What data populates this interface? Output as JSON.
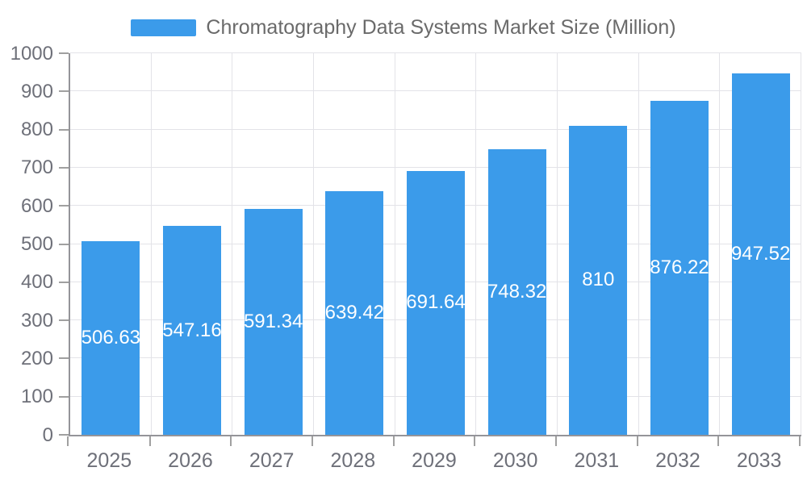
{
  "legend": {
    "label": "Chromatography Data Systems Market Size (Million)"
  },
  "colors": {
    "background": "#ffffff",
    "bar": "#3b9bea",
    "grid": "#e3e3e8",
    "axis": "#949499",
    "tick": "#a0a0a0",
    "tick_label": "#6e7079",
    "legend_text": "#6a6a6a",
    "value_label": "#ffffff"
  },
  "chart_data": {
    "type": "bar",
    "title": "Chromatography Data Systems Market Size (Million)",
    "categories": [
      "2025",
      "2026",
      "2027",
      "2028",
      "2029",
      "2030",
      "2031",
      "2032",
      "2033"
    ],
    "values": [
      506.63,
      547.16,
      591.34,
      639.42,
      691.64,
      748.32,
      810,
      876.22,
      947.52
    ],
    "value_labels": [
      "506.63",
      "547.16",
      "591.34",
      "639.42",
      "691.64",
      "748.32",
      "810",
      "876.22",
      "947.52"
    ],
    "value_label_position": "inside-center",
    "xlabel": "",
    "ylabel": "",
    "ylim": [
      0,
      1000
    ],
    "y_ticks": [
      0,
      100,
      200,
      300,
      400,
      500,
      600,
      700,
      800,
      900,
      1000
    ],
    "grid": true,
    "legend_position": "top"
  }
}
